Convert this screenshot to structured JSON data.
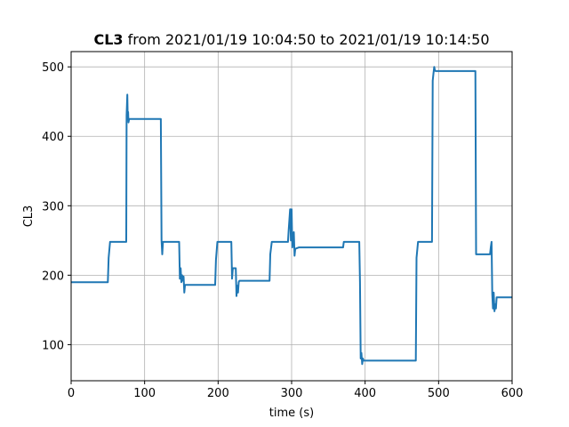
{
  "chart_data": {
    "type": "line",
    "title_bold": "CL3",
    "title_rest": " from 2021/01/19 10:04:50 to 2021/01/19 10:14:50",
    "xlabel": "time (s)",
    "ylabel": "CL3",
    "xlim": [
      0,
      600
    ],
    "ylim": [
      48,
      522
    ],
    "xticks": [
      0,
      100,
      200,
      300,
      400,
      500,
      600
    ],
    "yticks": [
      100,
      200,
      300,
      400,
      500
    ],
    "grid": true,
    "series": [
      {
        "color": "#1f77b4",
        "x": [
          0,
          50,
          51,
          53,
          70,
          75,
          75.5,
          76,
          76.5,
          77,
          77.5,
          78,
          79,
          80,
          81,
          122,
          123,
          124,
          125,
          126,
          147,
          148,
          149,
          150,
          151,
          152,
          153,
          154,
          155,
          196,
          197,
          199,
          217,
          218,
          219,
          220,
          224,
          225,
          226,
          227,
          228,
          229,
          230,
          233,
          248,
          270,
          271,
          273,
          295,
          296,
          297,
          298,
          299,
          300,
          301,
          302,
          303,
          304,
          305,
          310,
          370,
          371,
          392,
          393,
          394,
          395,
          396,
          397,
          398,
          399,
          400,
          401,
          469,
          470,
          472,
          491,
          492,
          493,
          494,
          495,
          496,
          550,
          551,
          570,
          571,
          572,
          573,
          574,
          575,
          576,
          577,
          578,
          579,
          580,
          581,
          600
        ],
        "y": [
          190,
          190,
          225,
          248,
          248,
          248,
          430,
          445,
          460,
          425,
          435,
          420,
          425,
          425,
          425,
          425,
          250,
          230,
          248,
          248,
          248,
          195,
          210,
          190,
          200,
          192,
          198,
          175,
          186,
          186,
          222,
          248,
          248,
          248,
          195,
          210,
          210,
          170,
          185,
          175,
          190,
          192,
          192,
          192,
          192,
          192,
          230,
          248,
          248,
          265,
          280,
          295,
          250,
          295,
          240,
          255,
          262,
          228,
          238,
          240,
          240,
          248,
          248,
          190,
          80,
          88,
          72,
          80,
          77,
          77,
          77,
          77,
          77,
          225,
          248,
          248,
          480,
          490,
          500,
          495,
          494,
          494,
          230,
          230,
          240,
          248,
          172,
          152,
          175,
          148,
          158,
          152,
          168,
          168,
          168,
          168
        ]
      }
    ]
  }
}
